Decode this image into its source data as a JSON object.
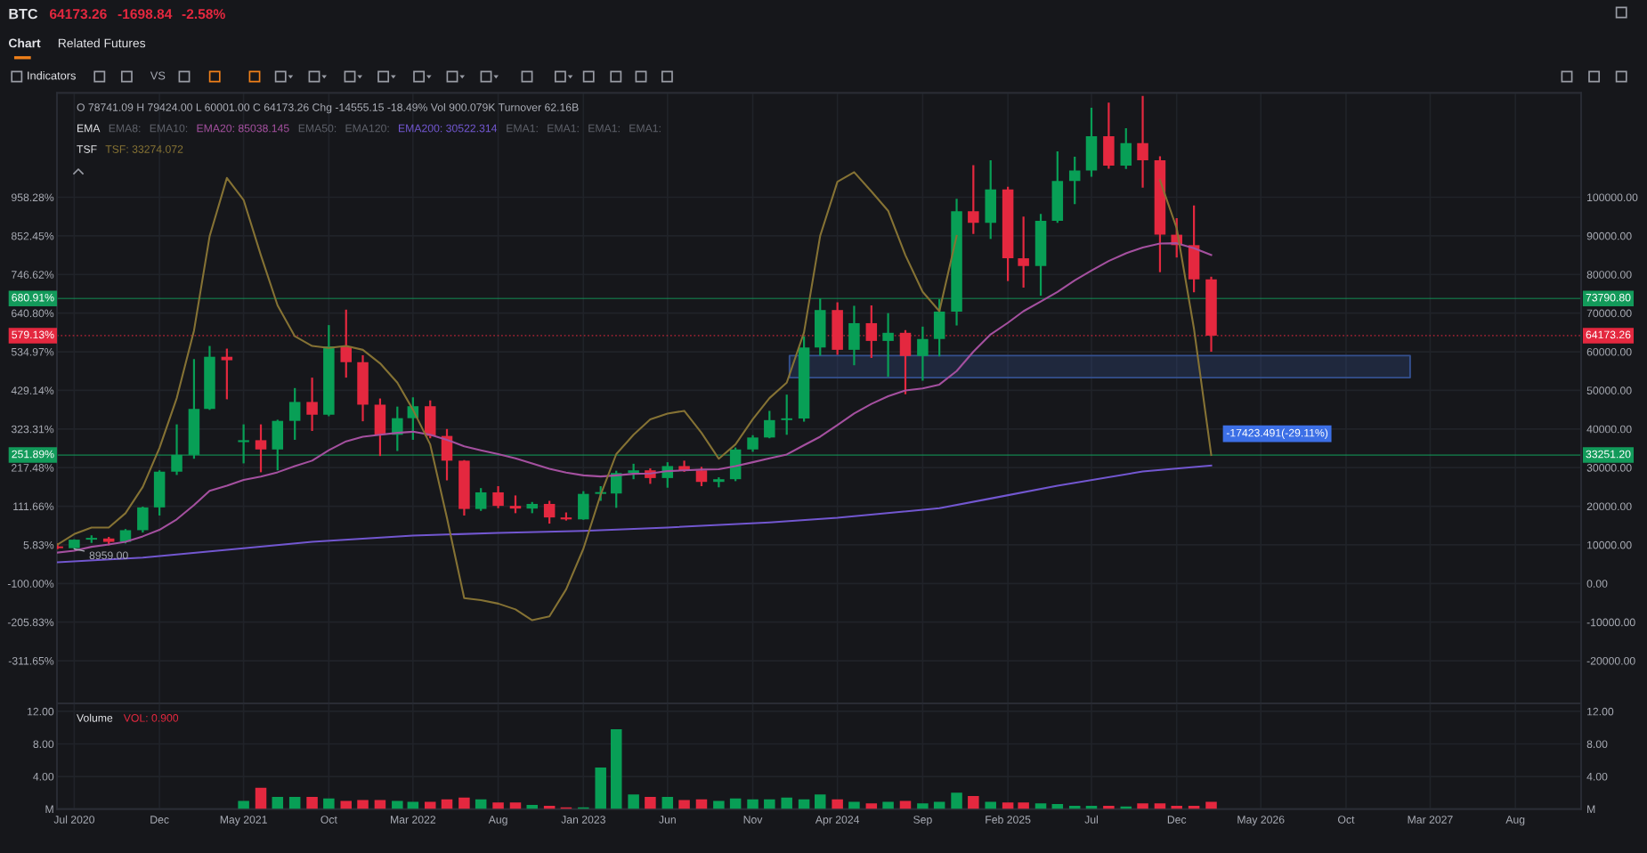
{
  "chart_data": [
    {
      "type": "other",
      "title": "BTC",
      "annotations": [
        "64173.26",
        "-1698.84",
        "-2.58%",
        "Chart",
        "Related Futures",
        "Indicators",
        "VS"
      ]
    },
    {
      "type": "candlestick",
      "x": [
        "2020-06",
        "2020-07",
        "2020-08",
        "2020-09",
        "2020-10",
        "2020-11",
        "2020-12",
        "2021-01",
        "2021-02",
        "2021-03",
        "2021-04",
        "2021-05",
        "2021-06",
        "2021-07",
        "2021-08",
        "2021-09",
        "2021-10",
        "2021-11",
        "2021-12",
        "2022-01",
        "2022-02",
        "2022-03",
        "2022-04",
        "2022-05",
        "2022-06",
        "2022-07",
        "2022-08",
        "2022-09",
        "2022-10",
        "2022-11",
        "2022-12",
        "2023-01",
        "2023-02",
        "2023-03",
        "2023-04",
        "2023-05",
        "2023-06",
        "2023-07",
        "2023-08",
        "2023-09",
        "2023-10",
        "2023-11",
        "2023-12",
        "2024-01",
        "2024-02",
        "2024-03",
        "2024-04",
        "2024-05",
        "2024-06",
        "2024-07",
        "2024-08",
        "2024-09",
        "2024-10",
        "2024-11",
        "2024-12",
        "2025-01",
        "2025-02",
        "2025-03",
        "2025-04",
        "2025-05",
        "2025-06",
        "2025-07",
        "2025-08",
        "2025-09",
        "2025-10",
        "2025-11",
        "2025-12",
        "2026-01",
        "2026-02"
      ],
      "ohlc": [
        [
          9450,
          10380,
          8900,
          9140
        ],
        [
          9140,
          11450,
          8959,
          11350
        ],
        [
          11350,
          12470,
          10500,
          11650
        ],
        [
          11650,
          12050,
          9880,
          10780
        ],
        [
          10780,
          14100,
          10370,
          13800
        ],
        [
          13800,
          19900,
          13200,
          19700
        ],
        [
          19700,
          29300,
          17600,
          28950
        ],
        [
          28950,
          41200,
          28100,
          33300
        ],
        [
          33300,
          58100,
          32300,
          45200
        ],
        [
          45200,
          61500,
          44950,
          58700
        ],
        [
          58700,
          60800,
          47700,
          57800
        ],
        [
          36600,
          41200,
          31100,
          37100
        ],
        [
          37100,
          41200,
          28800,
          34700
        ],
        [
          34700,
          42400,
          29300,
          42100
        ],
        [
          42100,
          50600,
          37200,
          47000
        ],
        [
          47000,
          53300,
          39500,
          43700
        ],
        [
          43700,
          66900,
          43300,
          61400
        ],
        [
          61400,
          70900,
          53300,
          57300
        ],
        [
          57300,
          59100,
          42000,
          46300
        ],
        [
          46300,
          47900,
          33000,
          38500
        ],
        [
          38500,
          45800,
          34300,
          42800
        ],
        [
          42800,
          48200,
          37200,
          45900
        ],
        [
          45900,
          47400,
          37600,
          38200
        ],
        [
          38200,
          40000,
          26700,
          31800
        ],
        [
          31800,
          31950,
          17600,
          19300
        ],
        [
          19300,
          24700,
          18800,
          23600
        ],
        [
          23600,
          25200,
          19500,
          20100
        ],
        [
          20100,
          22800,
          18200,
          19400
        ],
        [
          19400,
          21100,
          18200,
          20600
        ],
        [
          20600,
          21400,
          15500,
          17100
        ],
        [
          17100,
          18400,
          16300,
          16600
        ],
        [
          16600,
          23900,
          16500,
          23200
        ],
        [
          23200,
          25200,
          21400,
          23300
        ],
        [
          23300,
          29200,
          19600,
          28600
        ],
        [
          28600,
          31000,
          27000,
          29300
        ],
        [
          29300,
          29800,
          25800,
          27300
        ],
        [
          27300,
          31400,
          24800,
          30400
        ],
        [
          30400,
          31800,
          28900,
          29300
        ],
        [
          29300,
          30200,
          25200,
          26300
        ],
        [
          26300,
          27500,
          24900,
          27000
        ],
        [
          27000,
          35200,
          26500,
          34700
        ],
        [
          34700,
          38400,
          34100,
          37800
        ],
        [
          37800,
          44700,
          37600,
          42300
        ],
        [
          42300,
          48900,
          38500,
          42700
        ],
        [
          42700,
          64000,
          41900,
          61100
        ],
        [
          61100,
          73790.8,
          59000,
          70800
        ],
        [
          70800,
          72800,
          59200,
          60500
        ],
        [
          60500,
          71900,
          56500,
          67400
        ],
        [
          67400,
          72000,
          58400,
          62800
        ],
        [
          62800,
          70000,
          53500,
          64900
        ],
        [
          64900,
          65600,
          49000,
          58900
        ],
        [
          58900,
          66500,
          52500,
          63300
        ],
        [
          63300,
          73600,
          58800,
          70400
        ],
        [
          70400,
          99600,
          66800,
          96400
        ],
        [
          96400,
          108300,
          90500,
          93400
        ],
        [
          93400,
          109600,
          89200,
          102000
        ],
        [
          102000,
          102700,
          78300,
          84200
        ],
        [
          84200,
          95000,
          76600,
          82200
        ],
        [
          82200,
          95700,
          74500,
          93900
        ],
        [
          93900,
          111900,
          93400,
          104200
        ],
        [
          104200,
          110500,
          98200,
          106900
        ],
        [
          106900,
          123200,
          105300,
          115800
        ],
        [
          115800,
          124500,
          107400,
          108200
        ],
        [
          108200,
          117900,
          107300,
          114000
        ],
        [
          114000,
          126200,
          102500,
          109600
        ],
        [
          109600,
          110600,
          80600,
          90300
        ],
        [
          90300,
          94600,
          84400,
          87600
        ],
        [
          87600,
          97900,
          75400,
          78741.09
        ],
        [
          78741.09,
          79424.0,
          60001.0,
          64173.26
        ]
      ],
      "colors": [
        "#e4283f",
        "#089f56",
        "#089f56",
        "#e4283f",
        "#089f56",
        "#089f56",
        "#089f56",
        "#089f56",
        "#089f56",
        "#089f56",
        "#e4283f",
        "#089f56",
        "#e4283f",
        "#089f56",
        "#089f56",
        "#e4283f",
        "#089f56",
        "#e4283f",
        "#e4283f",
        "#e4283f",
        "#089f56",
        "#089f56",
        "#e4283f",
        "#e4283f",
        "#e4283f",
        "#089f56",
        "#e4283f",
        "#e4283f",
        "#089f56",
        "#e4283f",
        "#e4283f",
        "#089f56",
        "#089f56",
        "#089f56",
        "#089f56",
        "#e4283f",
        "#089f56",
        "#e4283f",
        "#e4283f",
        "#089f56",
        "#089f56",
        "#089f56",
        "#089f56",
        "#089f56",
        "#089f56",
        "#089f56",
        "#e4283f",
        "#089f56",
        "#e4283f",
        "#089f56",
        "#e4283f",
        "#089f56",
        "#089f56",
        "#089f56",
        "#e4283f",
        "#089f56",
        "#e4283f",
        "#e4283f",
        "#089f56",
        "#089f56",
        "#089f56",
        "#089f56",
        "#e4283f",
        "#089f56",
        "#e4283f",
        "#e4283f",
        "#e4283f",
        "#e4283f",
        "#e4283f"
      ],
      "series": [
        {
          "type": "line",
          "name": "EMA20: 85038.145",
          "color": "#a4509f",
          "values": [
            8000,
            8500,
            9500,
            10100,
            10800,
            12200,
            13900,
            16600,
            20300,
            24000,
            25300,
            26800,
            27700,
            28800,
            30400,
            31800,
            34500,
            36800,
            38000,
            38500,
            39000,
            39300,
            38500,
            37200,
            35500,
            34500,
            33500,
            32400,
            31100,
            29700,
            28700,
            28000,
            27700,
            28000,
            28400,
            28500,
            29100,
            29300,
            29500,
            29600,
            30400,
            31400,
            32400,
            33400,
            35800,
            38000,
            41000,
            44000,
            46500,
            48500,
            50000,
            50500,
            51500,
            55000,
            60000,
            64500,
            67500,
            70500,
            73000,
            75500,
            78500,
            81000,
            83500,
            85500,
            87000,
            88000,
            88100,
            86800,
            85038.145
          ]
        },
        {
          "type": "line",
          "name": "EMA200: 30522.314",
          "color": "#7257d0",
          "x": [
            "2020-06",
            "2020-11",
            "2021-04",
            "2021-09",
            "2022-03",
            "2022-08",
            "2023-01",
            "2023-06",
            "2023-12",
            "2024-04",
            "2024-10",
            "2025-01",
            "2025-05",
            "2025-10",
            "2026-02"
          ],
          "values": [
            5500,
            6700,
            8700,
            10800,
            12400,
            13100,
            13600,
            14500,
            15800,
            17000,
            19500,
            22000,
            25300,
            29000,
            30522.314
          ]
        },
        {
          "type": "line",
          "name": "TSF: 33274.072",
          "color": "#857234",
          "values": [
            10100,
            12800,
            14500,
            14500,
            18200,
            25000,
            35100,
            48000,
            65500,
            89900,
            105000,
            99300,
            85000,
            72000,
            64000,
            61500,
            61000,
            61500,
            60500,
            57000,
            52000,
            45000,
            36000,
            17000,
            -3800,
            -4300,
            -5200,
            -6700,
            -9500,
            -8500,
            -1500,
            9000,
            23000,
            33500,
            38500,
            42500,
            44000,
            44700,
            39000,
            32300,
            36000,
            42500,
            48000,
            52000,
            65000,
            90000,
            104000,
            106500,
            101500,
            96500,
            85000,
            75500,
            70500,
            90000,
            null,
            null,
            null,
            null,
            null,
            null,
            null,
            null,
            null,
            null,
            null,
            104400,
            92000,
            66000,
            33274.072
          ]
        },
        {
          "type": "line",
          "color": "#34508f",
          "x": [
            "2024-01-06",
            "2027-01-24"
          ],
          "values": [
            null,
            null
          ],
          "lower": [
            53300,
            53300
          ],
          "upper": [
            59000,
            59000
          ]
        }
      ],
      "xlim": [
        "2020-05-31",
        "2027-11-27"
      ],
      "xticks": [
        {
          "value": "2020-07",
          "label": null
        },
        {
          "value": "2020-12",
          "label": null
        },
        {
          "value": "2021-05",
          "label": null
        },
        {
          "value": "2021-10",
          "label": null
        },
        {
          "value": "2022-03",
          "label": null
        },
        {
          "value": "2022-08",
          "label": null
        },
        {
          "value": "2023-01",
          "label": null
        },
        {
          "value": "2023-06",
          "label": null
        },
        {
          "value": "2023-11",
          "label": null
        },
        {
          "value": "2024-04",
          "label": null
        },
        {
          "value": "2024-09",
          "label": null
        },
        {
          "value": "2025-02",
          "label": null
        },
        {
          "value": "2025-07",
          "label": null
        },
        {
          "value": "2025-12",
          "label": null
        },
        {
          "value": "2026-05",
          "label": null
        },
        {
          "value": "2026-10",
          "label": null
        },
        {
          "value": "2027-03",
          "label": null
        },
        {
          "value": "2027-08",
          "label": null
        }
      ],
      "ylim": [
        -31000,
        127000
      ],
      "yticks": [
        {
          "value": -20000,
          "label": "-20000.00"
        },
        {
          "value": -10000,
          "label": "-10000.00"
        },
        {
          "value": 0,
          "label": "0.00"
        },
        {
          "value": 10000,
          "label": "10000.00"
        },
        {
          "value": 20000,
          "label": "20000.00"
        },
        {
          "value": 30000,
          "label": "30000.00"
        },
        {
          "value": 40000,
          "label": "40000.00"
        },
        {
          "value": 50000,
          "label": "50000.00"
        },
        {
          "value": 60000,
          "label": "60000.00"
        },
        {
          "value": 70000,
          "label": "70000.00"
        },
        {
          "value": 80000,
          "label": "80000.00"
        },
        {
          "value": 90000,
          "label": "90000.00"
        },
        {
          "value": 100000,
          "label": "100000.00"
        }
      ],
      "y2lim": [
        -428.07,
        1244.01
      ],
      "y2ticks": [
        {
          "value": -311.65,
          "label": "-311.65%"
        },
        {
          "value": -205.83,
          "label": "-205.83%"
        },
        {
          "value": -100.0,
          "label": "-100.00%"
        },
        {
          "value": 5.83,
          "label": "5.83%"
        },
        {
          "value": 111.66,
          "label": "111.66%"
        },
        {
          "value": 217.48,
          "label": "217.48%"
        },
        {
          "value": 323.31,
          "label": "323.31%"
        },
        {
          "value": 429.14,
          "label": "429.14%"
        },
        {
          "value": 534.97,
          "label": "534.97%"
        },
        {
          "value": 640.8,
          "label": "640.80%"
        },
        {
          "value": 746.62,
          "label": "746.62%"
        },
        {
          "value": 852.45,
          "label": "852.45%"
        },
        {
          "value": 958.28,
          "label": "958.28%"
        }
      ],
      "ref_lines": [
        {
          "axis": "y",
          "value": 73790.8,
          "label": "73790.80",
          "color": "#129a5a"
        },
        {
          "axis": "y",
          "value": 64173.26,
          "label": "64173.26",
          "color": "#e4283f",
          "line_style": "dotted"
        },
        {
          "axis": "y",
          "value": 33251.2,
          "label": "33251.20",
          "color": "#129a5a"
        }
      ],
      "annotations": [
        "O 78741.09 H 79424.00 L 60001.00 C 64173.26 Chg -14555.15 -18.49% Vol 900.079K Turnover 62.16B",
        "EMA",
        "EMA8:",
        "EMA10:",
        "EMA50:",
        "EMA120:",
        "EMA1:",
        "EMA1:",
        "EMA1:",
        "EMA1:",
        "TSF",
        "-17423.491(-29.11%)",
        {
          "text": "8959.00",
          "x": "2020-07",
          "y": 8959
        },
        {
          "text": "680.91%",
          "x": "2020-05-31",
          "y": 73790.8
        },
        {
          "text": "579.13%",
          "x": "2020-05-31",
          "y": 64173.26
        },
        {
          "text": "251.89%",
          "x": "2020-05-31",
          "y": 33251.2
        }
      ],
      "grid": true,
      "legend": "top left",
      "tick_labels": "y"
    },
    {
      "type": "bar",
      "title": "Volume",
      "annotations": [
        "VOL: 0.900"
      ],
      "x": [
        "2021-05",
        "2021-06",
        "2021-07",
        "2021-08",
        "2021-09",
        "2021-10",
        "2021-11",
        "2021-12",
        "2022-01",
        "2022-02",
        "2022-03",
        "2022-04",
        "2022-05",
        "2022-06",
        "2022-07",
        "2022-08",
        "2022-09",
        "2022-10",
        "2022-11",
        "2022-12",
        "2023-01",
        "2023-02",
        "2023-03",
        "2023-04",
        "2023-05",
        "2023-06",
        "2023-07",
        "2023-08",
        "2023-09",
        "2023-10",
        "2023-11",
        "2023-12",
        "2024-01",
        "2024-02",
        "2024-03",
        "2024-04",
        "2024-05",
        "2024-06",
        "2024-07",
        "2024-08",
        "2024-09",
        "2024-10",
        "2024-11",
        "2024-12",
        "2025-01",
        "2025-02",
        "2025-03",
        "2025-04",
        "2025-05",
        "2025-06",
        "2025-07",
        "2025-08",
        "2025-09",
        "2025-10",
        "2025-11",
        "2025-12",
        "2026-01",
        "2026-02"
      ],
      "values": [
        1.0,
        2.6,
        1.5,
        1.5,
        1.5,
        1.3,
        1.0,
        1.1,
        1.1,
        1.0,
        0.9,
        0.9,
        1.2,
        1.4,
        1.2,
        0.8,
        0.8,
        0.5,
        0.4,
        0.2,
        0.2,
        5.1,
        9.8,
        1.8,
        1.5,
        1.5,
        1.1,
        1.2,
        1.0,
        1.3,
        1.2,
        1.2,
        1.4,
        1.2,
        1.8,
        1.2,
        0.9,
        0.7,
        0.9,
        1.0,
        0.7,
        0.9,
        2.0,
        1.6,
        0.9,
        0.8,
        0.8,
        0.7,
        0.6,
        0.4,
        0.4,
        0.4,
        0.3,
        0.7,
        0.7,
        0.4,
        0.4,
        0.9
      ],
      "colors": [
        "#089f56",
        "#e4283f",
        "#089f56",
        "#089f56",
        "#e4283f",
        "#089f56",
        "#e4283f",
        "#e4283f",
        "#e4283f",
        "#089f56",
        "#089f56",
        "#e4283f",
        "#e4283f",
        "#e4283f",
        "#089f56",
        "#e4283f",
        "#e4283f",
        "#089f56",
        "#e4283f",
        "#e4283f",
        "#089f56",
        "#089f56",
        "#089f56",
        "#089f56",
        "#e4283f",
        "#089f56",
        "#e4283f",
        "#e4283f",
        "#089f56",
        "#089f56",
        "#089f56",
        "#089f56",
        "#089f56",
        "#089f56",
        "#089f56",
        "#e4283f",
        "#089f56",
        "#e4283f",
        "#089f56",
        "#e4283f",
        "#089f56",
        "#089f56",
        "#089f56",
        "#e4283f",
        "#089f56",
        "#e4283f",
        "#e4283f",
        "#089f56",
        "#089f56",
        "#089f56",
        "#089f56",
        "#e4283f",
        "#089f56",
        "#e4283f",
        "#e4283f",
        "#e4283f",
        "#e4283f",
        "#e4283f"
      ],
      "xlim": [
        "2020-05-31",
        "2027-11-27"
      ],
      "xticks": [
        {
          "value": "2020-07",
          "label": "Jul 2020"
        },
        {
          "value": "2020-12",
          "label": "Dec"
        },
        {
          "value": "2021-05",
          "label": "May 2021"
        },
        {
          "value": "2021-10",
          "label": "Oct"
        },
        {
          "value": "2022-03",
          "label": "Mar 2022"
        },
        {
          "value": "2022-08",
          "label": "Aug"
        },
        {
          "value": "2023-01",
          "label": "Jan 2023"
        },
        {
          "value": "2023-06",
          "label": "Jun"
        },
        {
          "value": "2023-11",
          "label": "Nov"
        },
        {
          "value": "2024-04",
          "label": "Apr 2024"
        },
        {
          "value": "2024-09",
          "label": "Sep"
        },
        {
          "value": "2025-02",
          "label": "Feb 2025"
        },
        {
          "value": "2025-07",
          "label": "Jul"
        },
        {
          "value": "2025-12",
          "label": "Dec"
        },
        {
          "value": "2026-05",
          "label": "May 2026"
        },
        {
          "value": "2026-10",
          "label": "Oct"
        },
        {
          "value": "2027-03",
          "label": "Mar 2027"
        },
        {
          "value": "2027-08",
          "label": "Aug"
        }
      ],
      "ylim": [
        0,
        13.0
      ],
      "yticks": [
        {
          "value": 0,
          "label": "M"
        },
        {
          "value": 4,
          "label": "4.00"
        },
        {
          "value": 8,
          "label": "8.00"
        },
        {
          "value": 12,
          "label": "12.00"
        }
      ],
      "y2lim": [
        0,
        13.0
      ],
      "y2ticks": [
        {
          "value": 0,
          "label": "M"
        },
        {
          "value": 4,
          "label": "4.00"
        },
        {
          "value": 8,
          "label": "8.00"
        },
        {
          "value": 12,
          "label": "12.00"
        }
      ],
      "grid": true
    }
  ]
}
